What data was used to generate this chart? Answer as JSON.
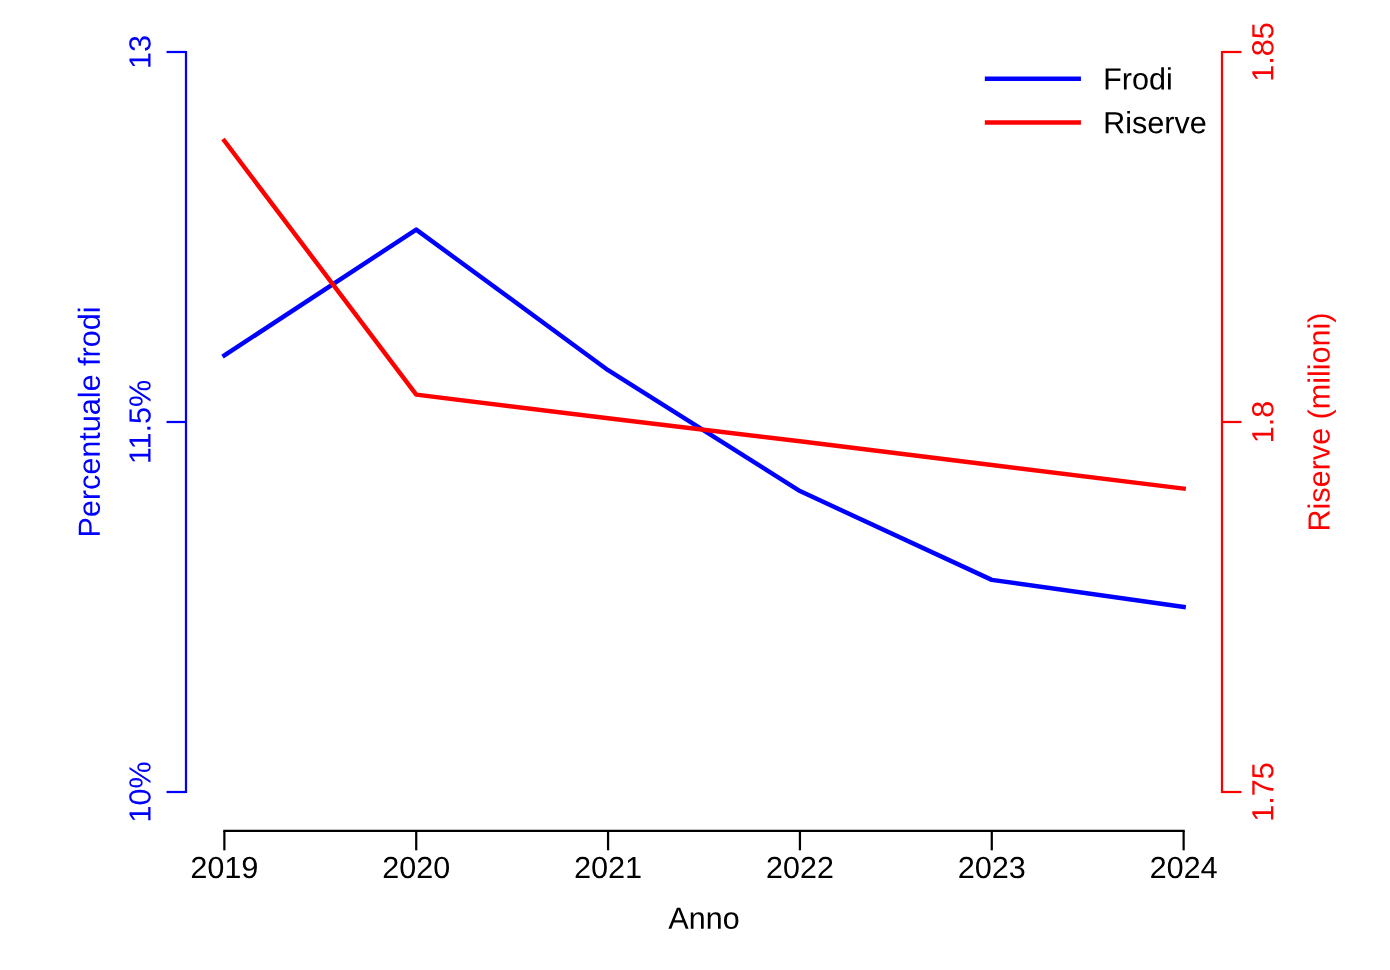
{
  "chart_data": {
    "type": "line",
    "xlabel": "Anno",
    "ylabel": "Percentuale frodi",
    "y2label": "Riserve (milioni)",
    "categories": [
      "2019",
      "2020",
      "2021",
      "2022",
      "2023",
      "2024"
    ],
    "series": [
      {
        "name": "Frodi",
        "color": "#0000ff",
        "values": [
          11.77,
          12.28,
          11.71,
          11.22,
          10.86,
          10.75
        ]
      },
      {
        "name": "Riserve",
        "color": "#ff0000",
        "axis": "y2",
        "values": [
          1.838,
          1.8037,
          1.8005,
          1.7974,
          1.7942,
          1.791
        ]
      }
    ],
    "ylim": [
      10,
      13
    ],
    "yticks": [
      {
        "value": 10,
        "label": "10%"
      },
      {
        "value": 11.5,
        "label": "11.5%"
      },
      13
    ],
    "y2lim": [
      1.75,
      1.85
    ],
    "y2ticks": [
      1.75,
      1.8,
      1.85
    ],
    "legend": "top right",
    "grid": false,
    "marker": "none",
    "line_style": "solid"
  }
}
